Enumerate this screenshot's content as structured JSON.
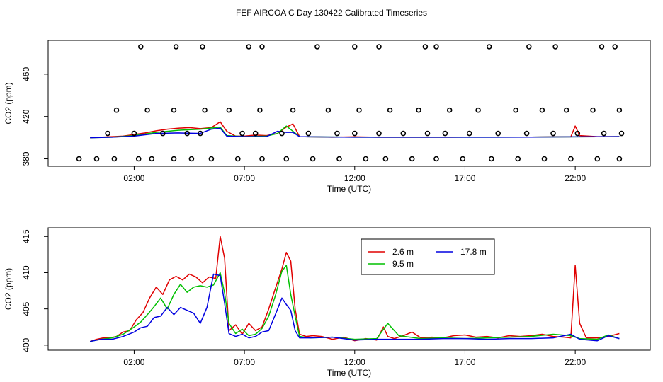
{
  "title": "FEF AIRCOA C  Day 130422  Calibrated Timeseries",
  "colors": {
    "s1": "#e00000",
    "s2": "#00c000",
    "s3": "#0000e0",
    "axis": "#000000",
    "marker": "#000000"
  },
  "chart_data": [
    {
      "type": "line",
      "xlabel": "Time (UTC)",
      "ylabel": "CO2 (ppm)",
      "xlim": [
        -1.9,
        25.4
      ],
      "ylim": [
        373,
        492
      ],
      "xticks": [
        {
          "value": 2,
          "label": "02:00"
        },
        {
          "value": 7,
          "label": "07:00"
        },
        {
          "value": 12,
          "label": "12:00"
        },
        {
          "value": 17,
          "label": "17:00"
        },
        {
          "value": 22,
          "label": "22:00"
        }
      ],
      "yticks": [
        {
          "value": 380,
          "label": "380"
        },
        {
          "value": 420,
          "label": "420"
        },
        {
          "value": 460,
          "label": "460"
        }
      ],
      "series": [
        {
          "key": "s1",
          "x": [
            0,
            0.5,
            1,
            1.5,
            2,
            2.5,
            3,
            3.5,
            4,
            4.5,
            5,
            5.5,
            5.9,
            6.2,
            6.6,
            7,
            7.5,
            8,
            8.5,
            8.9,
            9.2,
            9.5,
            10,
            11,
            12,
            13,
            14,
            15,
            16,
            17,
            18,
            19,
            20,
            21,
            21.8,
            22,
            22.2,
            23,
            23.5,
            24
          ],
          "y": [
            400,
            400.5,
            401,
            401.5,
            403,
            404.5,
            406.5,
            408,
            409,
            409.5,
            408.5,
            409.5,
            415,
            406,
            401.5,
            401.5,
            402.5,
            402,
            404,
            410,
            413,
            401,
            400.8,
            400.5,
            400.8,
            400.5,
            400.5,
            400.5,
            400.5,
            400.6,
            400.6,
            400.6,
            400.6,
            400.8,
            400.8,
            411,
            402,
            401,
            401,
            401
          ]
        },
        {
          "key": "s2",
          "x": [
            0,
            1,
            2,
            3,
            4,
            5,
            5.9,
            6.2,
            7,
            8,
            8.5,
            8.9,
            9.2,
            9.5,
            10,
            12,
            14,
            16,
            18,
            20,
            22,
            24
          ],
          "y": [
            400,
            400.5,
            402,
            405,
            407,
            408,
            410,
            402,
            401,
            401.5,
            404,
            411,
            406,
            401,
            400.8,
            400.5,
            400.5,
            400.5,
            400.5,
            400.6,
            400.8,
            401
          ]
        },
        {
          "key": "s3",
          "x": [
            0,
            1,
            2,
            3,
            4,
            5,
            5.5,
            5.9,
            6.2,
            7,
            8,
            8.5,
            8.9,
            9.2,
            9.5,
            10,
            12,
            14,
            16,
            18,
            20,
            22,
            24
          ],
          "y": [
            400,
            400.5,
            401.5,
            404,
            404.5,
            404,
            408,
            409,
            401.5,
            401,
            401,
            406,
            405,
            405,
            401,
            400.8,
            400.5,
            400.5,
            400.5,
            400.5,
            400.6,
            400.8,
            401
          ]
        }
      ],
      "markers": {
        "x": [
          -0.5,
          0.3,
          1.1,
          2.2,
          2.8,
          3.8,
          4.6,
          5.5,
          6.7,
          7.8,
          8.9,
          10.1,
          11.3,
          12.5,
          13.4,
          14.6,
          15.7,
          16.9,
          18.2,
          19.4,
          20.6,
          21.8,
          23.0,
          24.0,
          0.8,
          2.0,
          3.3,
          4.4,
          5.0,
          6.9,
          7.5,
          8.7,
          9.9,
          11.2,
          12.0,
          13.1,
          14.2,
          15.3,
          16.1,
          17.2,
          18.5,
          19.8,
          21.0,
          22.1,
          23.3,
          24.1,
          1.2,
          2.6,
          3.8,
          5.2,
          6.3,
          7.7,
          9.2,
          10.8,
          12.2,
          13.6,
          14.9,
          16.3,
          17.6,
          19.3,
          20.5,
          21.6,
          22.8,
          24.0,
          2.3,
          3.9,
          5.1,
          7.2,
          7.8,
          10.3,
          12.0,
          13.1,
          15.2,
          15.7,
          18.1,
          19.9,
          21.1,
          23.2,
          23.8
        ],
        "y": [
          380,
          380,
          380,
          380,
          380,
          380,
          380,
          380,
          380,
          380,
          380,
          380,
          380,
          380,
          380,
          380,
          380,
          380,
          380,
          380,
          380,
          380,
          380,
          380,
          404,
          404,
          404,
          404,
          404,
          404,
          404,
          404,
          404,
          404,
          404,
          404,
          404,
          404,
          404,
          404,
          404,
          404,
          404,
          404,
          404,
          404,
          426,
          426,
          426,
          426,
          426,
          426,
          426,
          426,
          426,
          426,
          426,
          426,
          426,
          426,
          426,
          426,
          426,
          426,
          486,
          486,
          486,
          486,
          486,
          486,
          486,
          486,
          486,
          486,
          486,
          486,
          486,
          486,
          486
        ]
      }
    },
    {
      "type": "line",
      "xlabel": "Time (UTC)",
      "ylabel": "CO2 (ppm)",
      "xlim": [
        -1.9,
        25.4
      ],
      "ylim": [
        399.3,
        416.2
      ],
      "xticks": [
        {
          "value": 2,
          "label": "02:00"
        },
        {
          "value": 7,
          "label": "07:00"
        },
        {
          "value": 12,
          "label": "12:00"
        },
        {
          "value": 17,
          "label": "17:00"
        },
        {
          "value": 22,
          "label": "22:00"
        }
      ],
      "yticks": [
        {
          "value": 400,
          "label": "400"
        },
        {
          "value": 405,
          "label": "405"
        },
        {
          "value": 410,
          "label": "410"
        },
        {
          "value": 415,
          "label": "415"
        }
      ],
      "legend": {
        "position": "top-center",
        "entries": [
          {
            "key": "s1",
            "label": "2.6 m"
          },
          {
            "key": "s3",
            "label": "17.8 m"
          },
          {
            "key": "s2",
            "label": "9.5 m"
          }
        ]
      },
      "series": [
        {
          "key": "s1",
          "x": [
            0,
            0.3,
            0.6,
            0.9,
            1.2,
            1.5,
            1.8,
            2.1,
            2.4,
            2.7,
            3.0,
            3.3,
            3.6,
            3.9,
            4.2,
            4.5,
            4.8,
            5.1,
            5.4,
            5.7,
            5.9,
            6.1,
            6.3,
            6.6,
            6.9,
            7.2,
            7.5,
            7.8,
            8.1,
            8.4,
            8.7,
            8.9,
            9.1,
            9.3,
            9.5,
            9.8,
            10.1,
            10.5,
            11,
            11.5,
            12,
            12.5,
            13,
            13.3,
            13.5,
            13.8,
            14.2,
            14.6,
            15,
            15.5,
            16,
            16.5,
            17,
            17.5,
            18,
            18.5,
            19,
            19.5,
            20,
            20.5,
            21,
            21.5,
            21.8,
            22.0,
            22.2,
            22.5,
            23,
            23.5,
            24
          ],
          "y": [
            400.5,
            400.8,
            401,
            401,
            401.2,
            401.8,
            402,
            403.5,
            404.5,
            406.5,
            408,
            407,
            409,
            409.5,
            409,
            409.8,
            409.4,
            408.6,
            409.4,
            409.2,
            415,
            412,
            402,
            402.8,
            401.5,
            403,
            402,
            402.5,
            405,
            407.8,
            410.5,
            412.8,
            411.6,
            405,
            401.5,
            401.2,
            401.3,
            401.2,
            400.8,
            401.1,
            400.6,
            400.9,
            400.7,
            402.5,
            401.2,
            400.9,
            401.3,
            401.8,
            401,
            401.1,
            401,
            401.3,
            401.4,
            401.1,
            401.2,
            401,
            401.3,
            401.2,
            401.3,
            401.5,
            401.2,
            401.1,
            401,
            411,
            403,
            401,
            401,
            401.2,
            401.6
          ]
        },
        {
          "key": "s2",
          "x": [
            0,
            0.5,
            1,
            1.5,
            2,
            2.3,
            2.6,
            2.9,
            3.2,
            3.5,
            3.8,
            4.1,
            4.4,
            4.7,
            5.0,
            5.3,
            5.6,
            5.9,
            6.1,
            6.3,
            6.6,
            6.9,
            7.2,
            7.5,
            7.8,
            8.1,
            8.4,
            8.7,
            8.9,
            9.1,
            9.3,
            9.5,
            10,
            11,
            12,
            13,
            13.5,
            14,
            15,
            16,
            17,
            18,
            19,
            20,
            21,
            21.8,
            22.2,
            23,
            23.5,
            24
          ],
          "y": [
            400.5,
            400.8,
            401,
            401.5,
            402.5,
            403.2,
            404.2,
            405.3,
            406.5,
            405,
            407,
            408.4,
            407.3,
            408,
            408.2,
            408,
            408.3,
            410,
            407.2,
            403,
            401.6,
            402.2,
            401.3,
            401.5,
            402.3,
            404,
            406.8,
            410.2,
            411,
            407,
            404,
            401.2,
            401,
            401.1,
            400.8,
            400.9,
            403,
            401.3,
            400.9,
            401,
            400.9,
            401,
            401.1,
            401.2,
            401.5,
            401.3,
            400.9,
            400.8,
            401.4,
            400.9
          ]
        },
        {
          "key": "s3",
          "x": [
            0,
            0.5,
            1,
            1.5,
            2,
            2.3,
            2.6,
            2.9,
            3.2,
            3.5,
            3.8,
            4.1,
            4.4,
            4.7,
            5.0,
            5.3,
            5.6,
            5.9,
            6.1,
            6.3,
            6.6,
            6.9,
            7.2,
            7.5,
            7.8,
            8.1,
            8.4,
            8.7,
            8.9,
            9.1,
            9.3,
            9.5,
            10,
            11,
            12,
            13,
            14,
            15,
            16,
            17,
            18,
            19,
            20,
            21,
            21.8,
            22.2,
            23,
            23.5,
            24
          ],
          "y": [
            400.5,
            400.8,
            400.8,
            401.2,
            401.8,
            402.4,
            402.6,
            403.8,
            404,
            405.2,
            404.2,
            405.2,
            404.8,
            404.4,
            403,
            405.2,
            409.8,
            409.6,
            405.8,
            401.6,
            401.2,
            401.5,
            401,
            401.2,
            401.8,
            402,
            404.2,
            406.5,
            405.6,
            404.8,
            402,
            401,
            401,
            401.1,
            400.7,
            400.8,
            400.8,
            400.8,
            400.9,
            400.9,
            400.8,
            400.9,
            400.9,
            401,
            401.5,
            400.8,
            400.6,
            401.3,
            400.9
          ]
        }
      ]
    }
  ]
}
